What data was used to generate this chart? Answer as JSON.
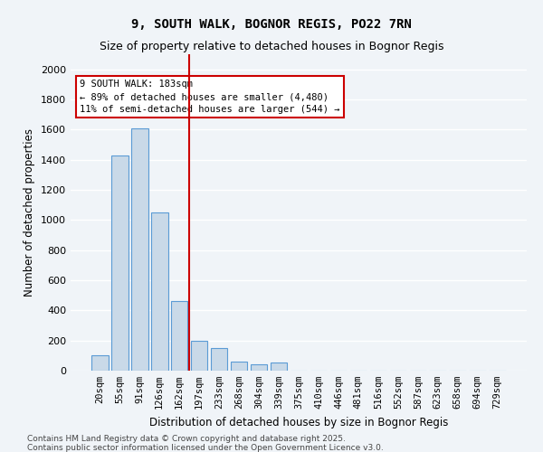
{
  "title_line1": "9, SOUTH WALK, BOGNOR REGIS, PO22 7RN",
  "title_line2": "Size of property relative to detached houses in Bognor Regis",
  "xlabel": "Distribution of detached houses by size in Bognor Regis",
  "ylabel": "Number of detached properties",
  "categories": [
    "20sqm",
    "55sqm",
    "91sqm",
    "126sqm",
    "162sqm",
    "197sqm",
    "233sqm",
    "268sqm",
    "304sqm",
    "339sqm",
    "375sqm",
    "410sqm",
    "446sqm",
    "481sqm",
    "516sqm",
    "552sqm",
    "587sqm",
    "623sqm",
    "658sqm",
    "694sqm",
    "729sqm"
  ],
  "values": [
    100,
    1430,
    1610,
    1050,
    460,
    200,
    150,
    60,
    45,
    55,
    0,
    0,
    0,
    0,
    0,
    0,
    0,
    0,
    0,
    0,
    0
  ],
  "bar_color": "#c9d9e8",
  "bar_edge_color": "#5b9bd5",
  "vline_x_index": 4.5,
  "vline_color": "#cc0000",
  "annotation_text": "9 SOUTH WALK: 183sqm\n← 89% of detached houses are smaller (4,480)\n11% of semi-detached houses are larger (544) →",
  "annotation_box_color": "#cc0000",
  "ylim": [
    0,
    2100
  ],
  "yticks": [
    0,
    200,
    400,
    600,
    800,
    1000,
    1200,
    1400,
    1600,
    1800,
    2000
  ],
  "background_color": "#f0f4f8",
  "plot_bg_color": "#f0f4f8",
  "grid_color": "#ffffff",
  "footer_line1": "Contains HM Land Registry data © Crown copyright and database right 2025.",
  "footer_line2": "Contains public sector information licensed under the Open Government Licence v3.0."
}
